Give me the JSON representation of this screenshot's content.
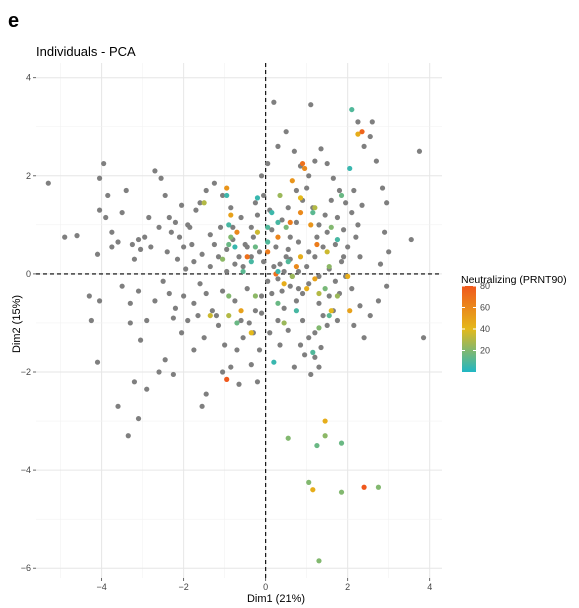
{
  "panel_letter": "e",
  "chart_data": {
    "type": "scatter",
    "title": "Individuals - PCA",
    "xlabel": "Dim1 (21%)",
    "ylabel": "Dim2 (15%)",
    "xlim": [
      -5.6,
      4.3
    ],
    "ylim": [
      -6.2,
      4.3
    ],
    "x_ticks": [
      "-4",
      "-2",
      "0",
      "2",
      "4"
    ],
    "y_ticks": [
      "4",
      "2",
      "0",
      "-2",
      "-4",
      "-6"
    ],
    "grid": true,
    "reference_lines": [
      "x = 0 (dashed)",
      "y = 0 (dashed)"
    ],
    "legend": {
      "title": "Neutralizing (PRNT90)",
      "placement": "right",
      "type": "colorbar",
      "range": [
        0,
        80
      ],
      "ticks": [
        "80",
        "60",
        "40",
        "20"
      ],
      "colors": [
        "#20b7c4",
        "#e4b91a",
        "#f0581c"
      ]
    },
    "missing_color": "#7f7f7f",
    "points_no_value": [
      [
        -5.3,
        1.85
      ],
      [
        -4.9,
        0.75
      ],
      [
        -4.6,
        0.78
      ],
      [
        -4.05,
        1.95
      ],
      [
        -3.95,
        2.25
      ],
      [
        -3.85,
        1.6
      ],
      [
        -4.05,
        1.3
      ],
      [
        -3.9,
        1.15
      ],
      [
        -3.75,
        0.85
      ],
      [
        -4.1,
        0.4
      ],
      [
        -3.75,
        0.55
      ],
      [
        -3.6,
        0.65
      ],
      [
        -3.5,
        1.25
      ],
      [
        -3.4,
        1.7
      ],
      [
        -3.25,
        0.6
      ],
      [
        -3.1,
        0.7
      ],
      [
        -2.95,
        0.75
      ],
      [
        -3.2,
        0.3
      ],
      [
        -3.05,
        0.5
      ],
      [
        -2.8,
        0.55
      ],
      [
        -2.7,
        2.1
      ],
      [
        -2.55,
        1.95
      ],
      [
        -2.45,
        1.6
      ],
      [
        -2.35,
        1.15
      ],
      [
        -2.2,
        1.05
      ],
      [
        -2.1,
        0.75
      ],
      [
        -2.0,
        0.55
      ],
      [
        -1.8,
        0.6
      ],
      [
        -1.9,
        1.0
      ],
      [
        -1.7,
        1.3
      ],
      [
        -1.6,
        1.45
      ],
      [
        -1.45,
        1.7
      ],
      [
        -1.35,
        0.8
      ],
      [
        -1.25,
        0.6
      ],
      [
        -1.1,
        0.95
      ],
      [
        -0.95,
        0.5
      ],
      [
        -0.8,
        0.7
      ],
      [
        -0.65,
        0.35
      ],
      [
        -0.55,
        0.15
      ],
      [
        -0.45,
        0.55
      ],
      [
        -0.3,
        0.75
      ],
      [
        -0.2,
        1.2
      ],
      [
        -0.1,
        2.0
      ],
      [
        -0.05,
        1.6
      ],
      [
        0.1,
        1.3
      ],
      [
        0.15,
        0.9
      ],
      [
        0.25,
        0.55
      ],
      [
        0.35,
        0.2
      ],
      [
        0.5,
        0.35
      ],
      [
        0.6,
        0.75
      ],
      [
        0.75,
        1.05
      ],
      [
        0.9,
        1.5
      ],
      [
        1.05,
        2.0
      ],
      [
        1.2,
        2.3
      ],
      [
        1.35,
        2.55
      ],
      [
        1.5,
        2.25
      ],
      [
        1.65,
        1.95
      ],
      [
        1.8,
        1.7
      ],
      [
        1.95,
        1.45
      ],
      [
        2.1,
        1.25
      ],
      [
        2.25,
        1.0
      ],
      [
        2.4,
        2.6
      ],
      [
        2.55,
        2.8
      ],
      [
        2.6,
        3.1
      ],
      [
        2.7,
        2.3
      ],
      [
        2.85,
        1.75
      ],
      [
        2.95,
        1.45
      ],
      [
        2.9,
        0.85
      ],
      [
        3.0,
        0.45
      ],
      [
        2.8,
        0.2
      ],
      [
        3.55,
        0.7
      ],
      [
        3.75,
        2.5
      ],
      [
        3.85,
        -1.3
      ],
      [
        2.95,
        -0.25
      ],
      [
        2.75,
        -0.55
      ],
      [
        2.55,
        -0.85
      ],
      [
        2.3,
        -0.65
      ],
      [
        2.1,
        -0.3
      ],
      [
        1.95,
        -0.05
      ],
      [
        1.8,
        -0.4
      ],
      [
        1.65,
        -0.75
      ],
      [
        1.5,
        -1.05
      ],
      [
        1.35,
        -1.5
      ],
      [
        1.2,
        -1.7
      ],
      [
        1.05,
        -1.3
      ],
      [
        0.9,
        -0.95
      ],
      [
        0.75,
        -0.55
      ],
      [
        0.6,
        -0.25
      ],
      [
        0.45,
        -0.7
      ],
      [
        0.3,
        -0.95
      ],
      [
        0.15,
        -0.4
      ],
      [
        0.05,
        -0.15
      ],
      [
        -0.1,
        -0.45
      ],
      [
        -0.25,
        -0.75
      ],
      [
        -0.4,
        -1.0
      ],
      [
        -0.55,
        -1.3
      ],
      [
        -0.7,
        -1.55
      ],
      [
        -0.85,
        -1.9
      ],
      [
        -1.0,
        -1.45
      ],
      [
        -1.15,
        -1.05
      ],
      [
        -1.3,
        -0.75
      ],
      [
        -1.45,
        -0.4
      ],
      [
        -1.6,
        -0.2
      ],
      [
        -1.75,
        -0.6
      ],
      [
        -1.9,
        -0.95
      ],
      [
        -2.05,
        -1.2
      ],
      [
        -2.2,
        -0.7
      ],
      [
        -2.35,
        -0.4
      ],
      [
        -2.5,
        -0.15
      ],
      [
        -2.7,
        -0.55
      ],
      [
        -2.9,
        -0.95
      ],
      [
        -3.1,
        -0.35
      ],
      [
        -3.3,
        -0.6
      ],
      [
        -3.5,
        -0.25
      ],
      [
        -4.3,
        -0.45
      ],
      [
        -4.25,
        -0.95
      ],
      [
        -4.05,
        -0.55
      ],
      [
        -4.1,
        -1.8
      ],
      [
        -3.3,
        -1.0
      ],
      [
        -3.05,
        -1.35
      ],
      [
        -2.45,
        -1.75
      ],
      [
        -2.25,
        -2.05
      ],
      [
        -2.6,
        -2.0
      ],
      [
        -2.9,
        -2.35
      ],
      [
        -3.2,
        -2.2
      ],
      [
        -3.6,
        -2.7
      ],
      [
        -3.35,
        -3.3
      ],
      [
        -3.1,
        -2.95
      ],
      [
        -1.55,
        -2.7
      ],
      [
        -1.45,
        -2.45
      ],
      [
        -1.05,
        -2.0
      ],
      [
        -0.65,
        -2.25
      ],
      [
        -0.35,
        -1.85
      ],
      [
        -0.2,
        -2.2
      ],
      [
        -0.6,
        -0.95
      ],
      [
        0.95,
        -1.65
      ],
      [
        1.2,
        -1.2
      ],
      [
        1.4,
        -0.85
      ],
      [
        1.55,
        -0.45
      ],
      [
        1.7,
        -0.15
      ],
      [
        1.85,
        0.25
      ],
      [
        2.0,
        0.55
      ],
      [
        2.2,
        0.75
      ],
      [
        2.3,
        0.35
      ],
      [
        1.4,
        0.55
      ],
      [
        1.2,
        0.35
      ],
      [
        1.0,
        0.15
      ],
      [
        0.8,
        0.05
      ],
      [
        0.65,
        -0.05
      ],
      [
        0.45,
        0.05
      ],
      [
        0.2,
        0.15
      ],
      [
        -0.05,
        0.25
      ],
      [
        -0.15,
        0.45
      ],
      [
        -0.35,
        0.35
      ],
      [
        -0.75,
        0.2
      ],
      [
        -0.95,
        0.05
      ],
      [
        -1.15,
        0.35
      ],
      [
        -1.35,
        0.15
      ],
      [
        -1.55,
        0.4
      ],
      [
        -1.75,
        0.25
      ],
      [
        -1.95,
        0.1
      ],
      [
        -2.15,
        0.3
      ],
      [
        -2.4,
        0.45
      ],
      [
        -2.6,
        0.95
      ],
      [
        -2.85,
        1.15
      ],
      [
        -0.25,
        1.45
      ],
      [
        0.05,
        2.25
      ],
      [
        0.3,
        2.6
      ],
      [
        0.5,
        2.9
      ],
      [
        0.7,
        2.5
      ],
      [
        0.85,
        2.2
      ],
      [
        1.0,
        1.75
      ],
      [
        1.15,
        1.35
      ],
      [
        1.3,
        1.0
      ],
      [
        1.45,
        1.2
      ],
      [
        1.6,
        1.5
      ],
      [
        1.75,
        1.15
      ],
      [
        1.9,
        0.9
      ],
      [
        2.15,
        1.7
      ],
      [
        2.35,
        1.4
      ],
      [
        0.2,
        3.5
      ],
      [
        1.1,
        3.45
      ],
      [
        2.25,
        3.1
      ],
      [
        0.9,
        -0.4
      ],
      [
        0.55,
        -1.15
      ],
      [
        0.35,
        -1.45
      ],
      [
        0.7,
        -1.9
      ],
      [
        0.85,
        -1.45
      ],
      [
        1.3,
        -0.6
      ],
      [
        1.75,
        -0.95
      ],
      [
        2.15,
        -1.05
      ],
      [
        2.4,
        -1.3
      ],
      [
        -0.45,
        -0.3
      ],
      [
        -0.75,
        -0.55
      ],
      [
        -1.05,
        -0.35
      ],
      [
        -1.2,
        -0.85
      ],
      [
        -1.5,
        -1.3
      ],
      [
        -1.75,
        -1.55
      ],
      [
        -0.35,
        0.95
      ],
      [
        -0.6,
        1.15
      ],
      [
        -0.85,
        1.35
      ],
      [
        -1.05,
        1.6
      ],
      [
        -1.25,
        1.85
      ],
      [
        0.4,
        1.1
      ],
      [
        0.55,
        1.35
      ],
      [
        0.75,
        1.7
      ],
      [
        0.3,
        -0.1
      ],
      [
        0.55,
        0.5
      ],
      [
        0.8,
        0.65
      ],
      [
        1.05,
        0.45
      ],
      [
        1.25,
        0.75
      ],
      [
        1.5,
        0.85
      ],
      [
        1.7,
        0.6
      ],
      [
        1.9,
        0.35
      ],
      [
        1.55,
        0.1
      ],
      [
        1.3,
        -0.05
      ],
      [
        1.05,
        -0.2
      ],
      [
        0.8,
        -0.3
      ],
      [
        -0.1,
        -0.8
      ],
      [
        -0.3,
        -1.2
      ],
      [
        -0.15,
        -1.55
      ],
      [
        0.1,
        -1.2
      ],
      [
        -2.0,
        -0.45
      ],
      [
        -2.25,
        -0.9
      ],
      [
        -1.65,
        -0.85
      ],
      [
        -1.85,
        0.95
      ],
      [
        -2.05,
        1.4
      ],
      [
        -2.3,
        0.85
      ],
      [
        1.1,
        -2.05
      ],
      [
        1.3,
        -1.9
      ],
      [
        0.6,
        0.3
      ],
      [
        0.4,
        -0.35
      ],
      [
        -0.5,
        0.6
      ],
      [
        -0.8,
        0.95
      ]
    ],
    "points_valued": [
      [
        2.1,
        3.35,
        10
      ],
      [
        2.25,
        2.85,
        45
      ],
      [
        2.35,
        2.9,
        75
      ],
      [
        2.05,
        2.15,
        5
      ],
      [
        1.85,
        1.6,
        15
      ],
      [
        1.75,
        0.7,
        8
      ],
      [
        1.6,
        0.95,
        20
      ],
      [
        1.2,
        1.35,
        30
      ],
      [
        1.15,
        1.25,
        12
      ],
      [
        0.9,
        2.25,
        70
      ],
      [
        0.95,
        2.15,
        60
      ],
      [
        0.85,
        1.55,
        40
      ],
      [
        0.65,
        1.9,
        55
      ],
      [
        0.85,
        1.25,
        60
      ],
      [
        0.6,
        1.05,
        65
      ],
      [
        0.5,
        0.95,
        18
      ],
      [
        0.35,
        1.6,
        25
      ],
      [
        0.3,
        1.05,
        8
      ],
      [
        0.3,
        0.75,
        62
      ],
      [
        0.15,
        1.25,
        6
      ],
      [
        0.05,
        0.65,
        10
      ],
      [
        0.05,
        0.45,
        65
      ],
      [
        -0.25,
        0.55,
        15
      ],
      [
        -0.2,
        1.55,
        5
      ],
      [
        -0.45,
        0.35,
        70
      ],
      [
        -0.35,
        0.25,
        8
      ],
      [
        -0.55,
        0.05,
        12
      ],
      [
        -0.7,
        0.85,
        60
      ],
      [
        -0.75,
        0.55,
        5
      ],
      [
        -0.9,
        0.6,
        15
      ],
      [
        -0.85,
        1.2,
        50
      ],
      [
        -0.9,
        1.0,
        8
      ],
      [
        -0.95,
        1.6,
        6
      ],
      [
        -0.95,
        1.75,
        55
      ],
      [
        -1.05,
        0.3,
        22
      ],
      [
        -1.5,
        1.45,
        30
      ],
      [
        -0.85,
        0.75,
        20
      ],
      [
        0.25,
        0.0,
        70
      ],
      [
        0.3,
        0.05,
        6
      ],
      [
        0.55,
        0.25,
        10
      ],
      [
        0.65,
        -0.05,
        25
      ],
      [
        0.45,
        -0.2,
        45
      ],
      [
        0.75,
        0.15,
        60
      ],
      [
        1.0,
        -0.3,
        45
      ],
      [
        1.25,
        0.6,
        65
      ],
      [
        1.5,
        0.45,
        35
      ],
      [
        1.55,
        0.15,
        22
      ],
      [
        1.3,
        -0.4,
        30
      ],
      [
        1.45,
        -0.3,
        18
      ],
      [
        1.55,
        -0.85,
        12
      ],
      [
        1.2,
        -0.1,
        50
      ],
      [
        1.3,
        -1.1,
        20
      ],
      [
        1.15,
        -1.6,
        10
      ],
      [
        1.6,
        -0.75,
        40
      ],
      [
        2.0,
        -0.05,
        45
      ],
      [
        2.05,
        -0.75,
        50
      ],
      [
        1.75,
        -0.45,
        25
      ],
      [
        0.75,
        -0.75,
        8
      ],
      [
        0.45,
        -1.0,
        25
      ],
      [
        0.3,
        -0.6,
        15
      ],
      [
        -0.25,
        -0.45,
        22
      ],
      [
        -0.6,
        -0.75,
        50
      ],
      [
        -0.9,
        -0.85,
        30
      ],
      [
        -0.9,
        -0.45,
        20
      ],
      [
        -1.35,
        -0.85,
        35
      ],
      [
        -0.7,
        -1.0,
        15
      ],
      [
        -0.35,
        -1.2,
        40
      ],
      [
        0.2,
        -1.8,
        5
      ],
      [
        -0.95,
        -2.15,
        80
      ],
      [
        1.45,
        -3.0,
        45
      ],
      [
        1.25,
        -3.5,
        15
      ],
      [
        1.45,
        -3.3,
        22
      ],
      [
        1.85,
        -3.45,
        15
      ],
      [
        0.55,
        -3.35,
        20
      ],
      [
        1.05,
        -4.25,
        20
      ],
      [
        1.15,
        -4.4,
        45
      ],
      [
        1.85,
        -4.45,
        20
      ],
      [
        2.4,
        -4.35,
        80
      ],
      [
        2.75,
        -4.35,
        20
      ],
      [
        1.3,
        -5.85,
        20
      ],
      [
        0.85,
        0.35,
        45
      ],
      [
        1.1,
        1.0,
        55
      ],
      [
        -0.2,
        0.85,
        35
      ],
      [
        0.05,
        0.95,
        10
      ]
    ]
  }
}
